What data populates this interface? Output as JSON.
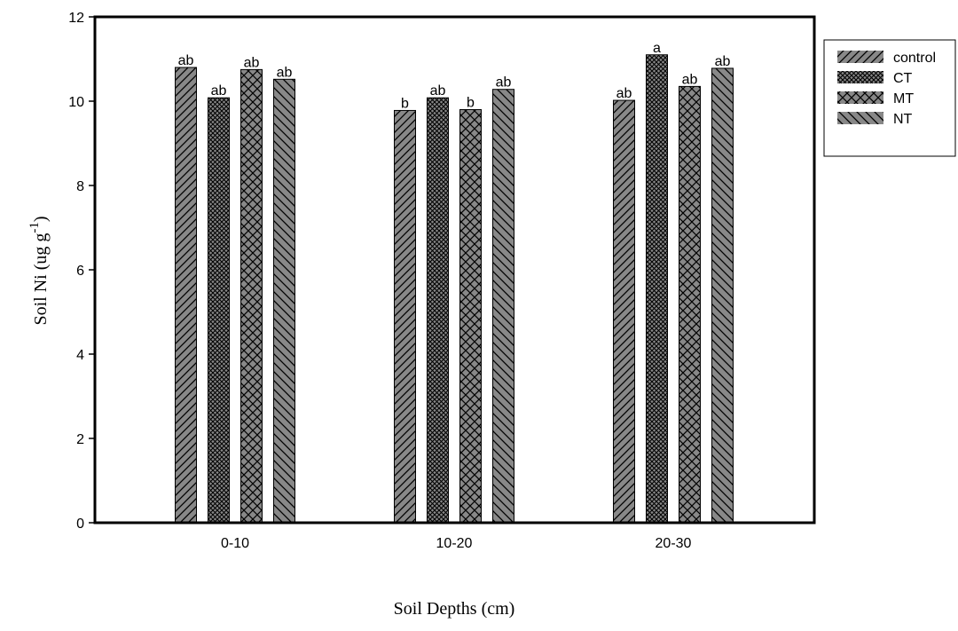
{
  "chart_data": {
    "type": "bar",
    "categories": [
      "0-10",
      "10-20",
      "20-30"
    ],
    "series": [
      {
        "name": "control",
        "values": [
          10.8,
          9.78,
          10.02
        ],
        "labels": [
          "ab",
          "b",
          "ab"
        ]
      },
      {
        "name": "CT",
        "values": [
          10.08,
          10.08,
          11.1
        ],
        "labels": [
          "ab",
          "ab",
          "a"
        ]
      },
      {
        "name": "MT",
        "values": [
          10.75,
          9.8,
          10.35
        ],
        "labels": [
          "ab",
          "b",
          "ab"
        ]
      },
      {
        "name": "NT",
        "values": [
          10.52,
          10.28,
          10.78
        ],
        "labels": [
          "ab",
          "ab",
          "ab"
        ]
      }
    ],
    "xlabel": "Soil Depths (cm)",
    "ylabel_main": "Soil Ni (ug g",
    "ylabel_sup": "-1",
    "ylabel_close": ")",
    "ylim": [
      0,
      12
    ],
    "yticks": [
      0,
      2,
      4,
      6,
      8,
      10,
      12
    ],
    "grid": false,
    "legend_position": "outside-top-right"
  }
}
